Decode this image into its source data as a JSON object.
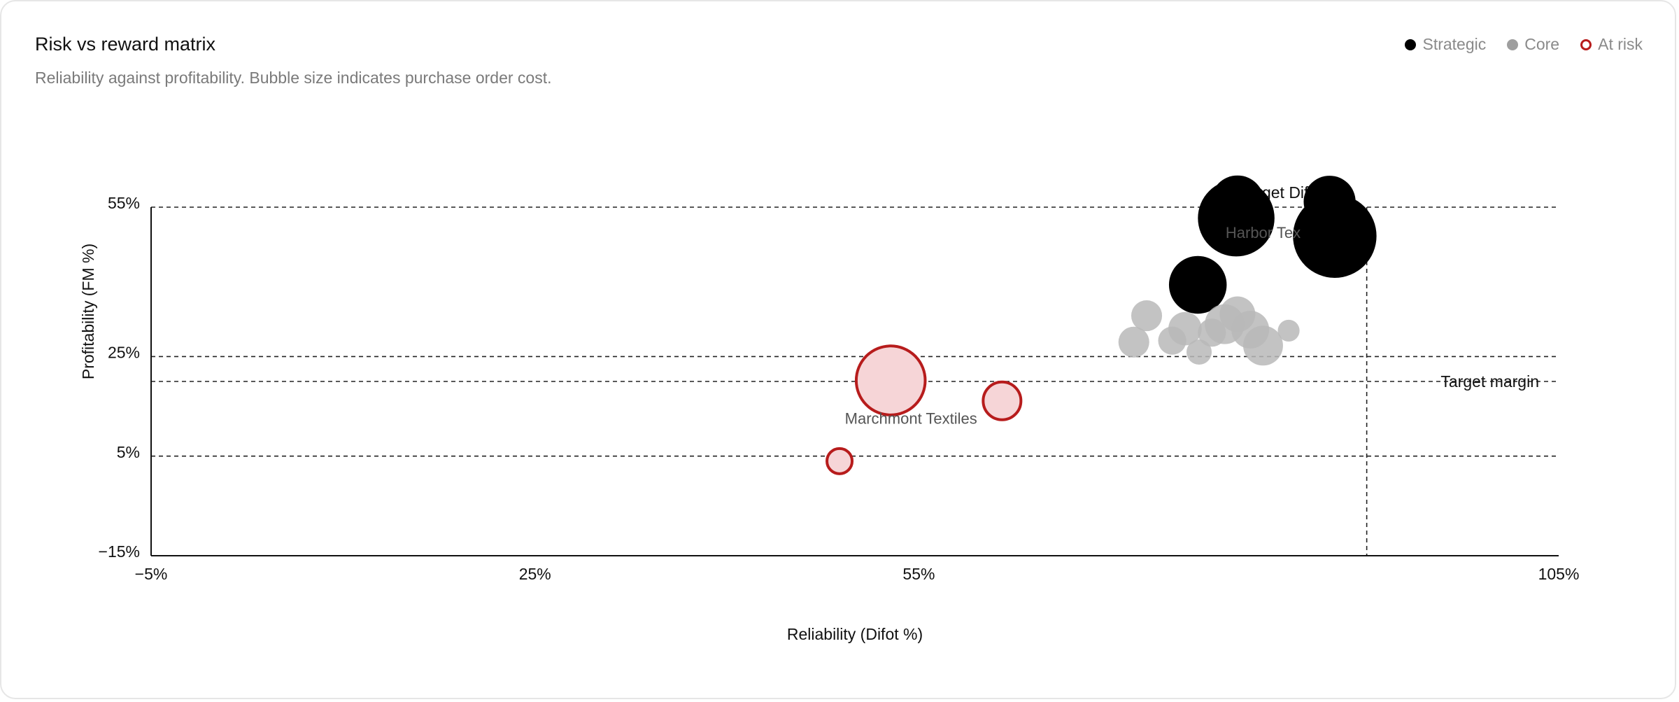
{
  "card": {
    "title": "Risk vs reward matrix",
    "subtitle": "Reliability against profitability. Bubble size indicates purchase order cost."
  },
  "legend": [
    {
      "label": "Strategic",
      "color": "#000000",
      "style": "filled"
    },
    {
      "label": "Core",
      "color": "#9e9e9e",
      "style": "filled"
    },
    {
      "label": "At risk",
      "color": "#b71c1c",
      "style": "ring"
    }
  ],
  "colors": {
    "strategic": "#000000",
    "core": "#b8b8b8",
    "at_risk_stroke": "#b71c1c",
    "at_risk_fill": "#f6d5d7"
  },
  "chart_data": {
    "type": "scatter",
    "title": "",
    "xlabel": "Reliability (Difot %)",
    "ylabel": "Profitability (FM %)",
    "xlim": [
      -5,
      105
    ],
    "ylim": [
      -15,
      55
    ],
    "x_ticks": [
      -5,
      25,
      55,
      105
    ],
    "y_ticks": [
      -15,
      5,
      25,
      55
    ],
    "x_tick_labels": [
      "−5%",
      "25%",
      "55%",
      "105%"
    ],
    "y_tick_labels": [
      "−15%",
      "5%",
      "25%",
      "55%"
    ],
    "grid_y_lines": [
      5,
      25,
      55
    ],
    "reference_lines": [
      {
        "axis": "y",
        "value": 20,
        "label": "Target margin"
      },
      {
        "axis": "x",
        "value": 90,
        "label": "Target Difot"
      }
    ],
    "series": [
      {
        "name": "Strategic",
        "points": [
          {
            "x": 79.9,
            "y": 56.0,
            "size": 18,
            "label": ""
          },
          {
            "x": 79.8,
            "y": 52.8,
            "size": 37,
            "label": ""
          },
          {
            "x": 87.1,
            "y": 56.1,
            "size": 17,
            "label": ""
          },
          {
            "x": 87.5,
            "y": 49.2,
            "size": 44,
            "label": ""
          },
          {
            "x": 76.8,
            "y": 39.4,
            "size": 21,
            "label": ""
          }
        ]
      },
      {
        "name": "Core",
        "points": [
          {
            "x": 71.8,
            "y": 27.9,
            "size": 6
          },
          {
            "x": 72.8,
            "y": 33.2,
            "size": 6
          },
          {
            "x": 74.8,
            "y": 28.2,
            "size": 5
          },
          {
            "x": 75.8,
            "y": 30.6,
            "size": 7
          },
          {
            "x": 76.9,
            "y": 25.9,
            "size": 4
          },
          {
            "x": 77.9,
            "y": 29.8,
            "size": 5
          },
          {
            "x": 78.9,
            "y": 31.5,
            "size": 10
          },
          {
            "x": 79.9,
            "y": 33.5,
            "size": 8
          },
          {
            "x": 80.9,
            "y": 30.4,
            "size": 9
          },
          {
            "x": 81.9,
            "y": 27.2,
            "size": 10
          },
          {
            "x": 83.9,
            "y": 30.2,
            "size": 3
          }
        ]
      },
      {
        "name": "At risk",
        "points": [
          {
            "x": 52.8,
            "y": 20.2,
            "size": 30,
            "label": "Marchmont Textiles"
          },
          {
            "x": 61.5,
            "y": 16.1,
            "size": 9,
            "label": ""
          },
          {
            "x": 48.8,
            "y": 4.0,
            "size": 4,
            "label": ""
          }
        ]
      }
    ],
    "annotations": [
      {
        "text": "Harbor Tex",
        "x": 81.9,
        "y": 48.8
      }
    ]
  }
}
